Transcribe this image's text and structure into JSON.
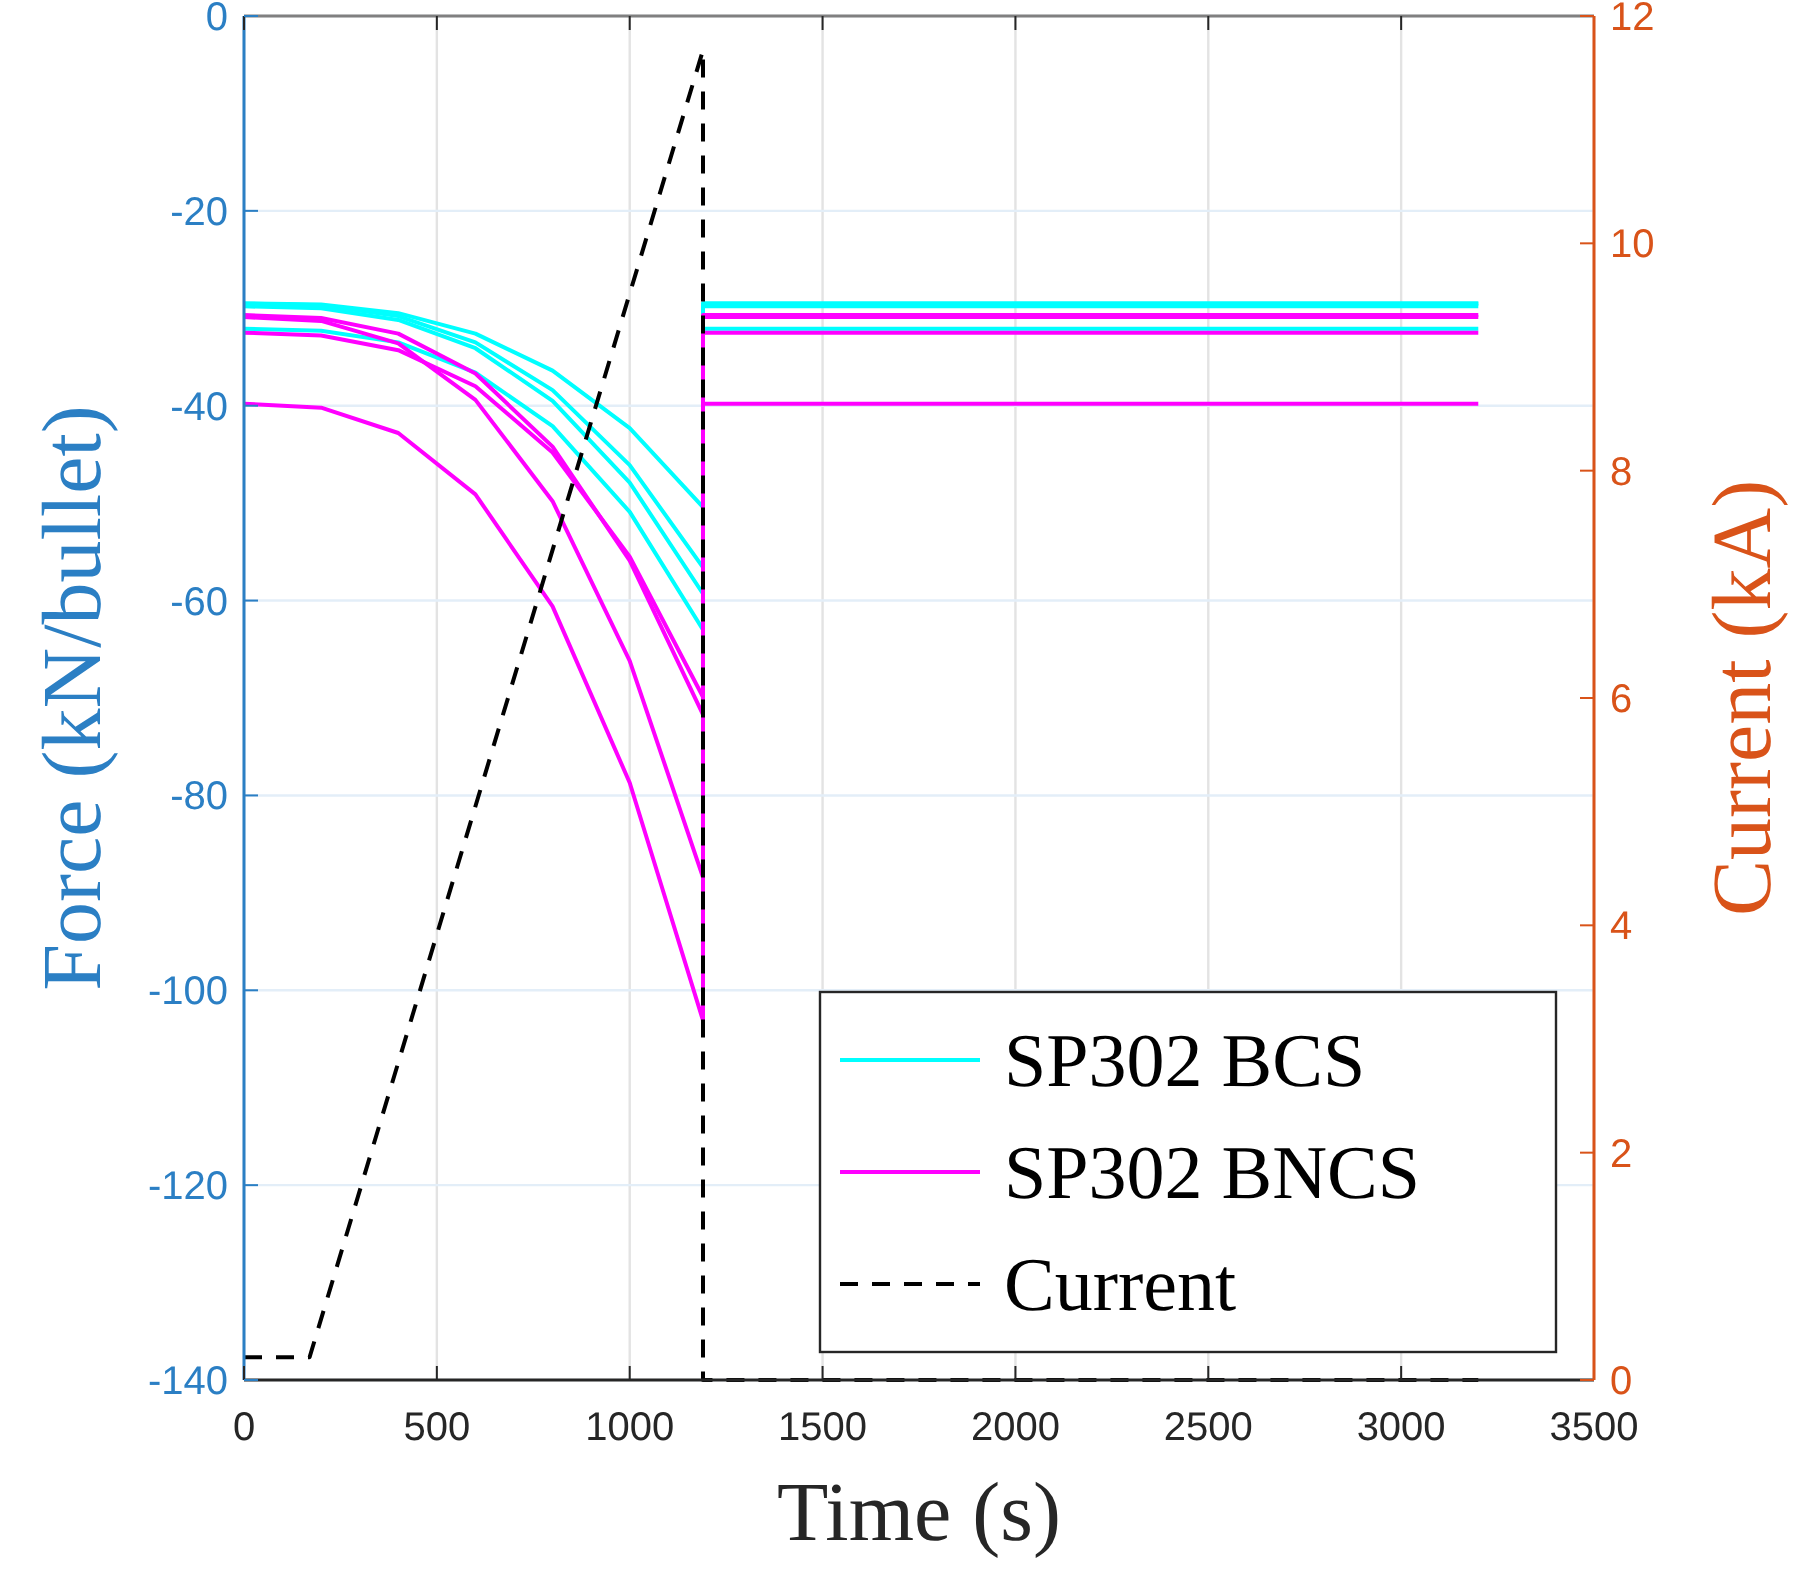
{
  "chart_data": {
    "type": "line",
    "xlabel": "Time (s)",
    "ylabel": "Force (kN/bullet)",
    "y2label": "Current (kA)",
    "xlim": [
      0,
      3500
    ],
    "xticks": [
      0,
      500,
      1000,
      1500,
      2000,
      2500,
      3000,
      3500
    ],
    "ylim": [
      -140,
      0
    ],
    "yticks": [
      -140,
      -120,
      -100,
      -80,
      -60,
      -40,
      -20,
      0
    ],
    "y2lim": [
      0,
      12
    ],
    "y2ticks": [
      0,
      2,
      4,
      6,
      8,
      10,
      12
    ],
    "grid": true,
    "legend": "bottom right",
    "series": [
      {
        "name": "SP302 BCS",
        "color": "#00ffff",
        "x": [
          0,
          200,
          400,
          600,
          800,
          1000,
          1190,
          1190,
          3200
        ],
        "values": [
          -29.5,
          -29.6,
          -30.5,
          -32.6,
          -36.4,
          -42.3,
          -50.4,
          -29.5,
          -29.5
        ]
      },
      {
        "color": "#00ffff",
        "x": [
          0,
          200,
          400,
          600,
          800,
          1000,
          1190,
          1190,
          3200
        ],
        "values": [
          -29.5,
          -29.7,
          -30.8,
          -33.5,
          -38.4,
          -46.1,
          -56.6,
          -29.5,
          -29.5
        ]
      },
      {
        "color": "#00ffff",
        "x": [
          0,
          200,
          400,
          600,
          800,
          1000,
          1190,
          1190,
          3200
        ],
        "values": [
          -29.8,
          -30.0,
          -31.2,
          -34.1,
          -39.5,
          -47.9,
          -59.3,
          -29.8,
          -29.8
        ]
      },
      {
        "color": "#00ffff",
        "x": [
          0,
          200,
          400,
          600,
          800,
          1000,
          1190,
          1190,
          3200
        ],
        "values": [
          -32.1,
          -32.3,
          -33.5,
          -36.6,
          -42.1,
          -50.9,
          -63.0,
          -32.1,
          -32.1
        ]
      },
      {
        "name": "SP302 BNCS",
        "color": "#ff00ff",
        "x": [
          0,
          200,
          400,
          600,
          800,
          1000,
          1190,
          1190,
          3200
        ],
        "values": [
          -30.7,
          -31.0,
          -32.6,
          -36.7,
          -44.2,
          -55.9,
          -71.7,
          -30.7,
          -30.7
        ]
      },
      {
        "color": "#ff00ff",
        "x": [
          0,
          200,
          400,
          600,
          800,
          1000,
          1190,
          1190,
          3200
        ],
        "values": [
          -30.9,
          -31.3,
          -33.6,
          -39.4,
          -49.8,
          -66.2,
          -88.4,
          -30.9,
          -30.9
        ]
      },
      {
        "color": "#ff00ff",
        "x": [
          0,
          200,
          400,
          600,
          800,
          1000,
          1190,
          1190,
          3200
        ],
        "values": [
          -32.5,
          -32.8,
          -34.3,
          -38.0,
          -44.8,
          -55.5,
          -69.9,
          -32.5,
          -32.5
        ]
      },
      {
        "color": "#ff00ff",
        "x": [
          0,
          200,
          400,
          600,
          800,
          1000,
          1190,
          1190,
          3200
        ],
        "values": [
          -39.8,
          -40.2,
          -42.8,
          -49.1,
          -60.6,
          -78.7,
          -103.1,
          -39.8,
          -39.8
        ]
      },
      {
        "name": "Current",
        "color": "#000000",
        "axis": "y2",
        "line_style": "dashed",
        "x": [
          0,
          170,
          1190,
          1190,
          3200
        ],
        "values": [
          0.2,
          0.2,
          11.7,
          0,
          0
        ]
      }
    ]
  }
}
